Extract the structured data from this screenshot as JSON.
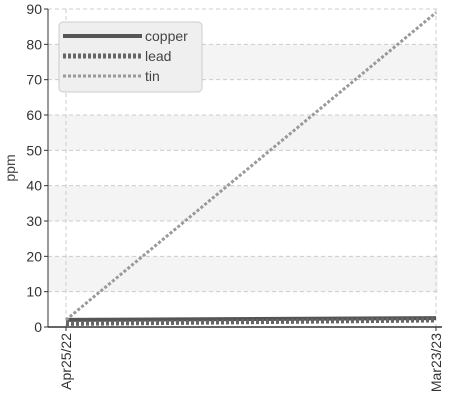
{
  "chart_data": {
    "type": "line",
    "title": "",
    "xlabel": "",
    "ylabel": "ppm",
    "x": [
      "Apr25/22",
      "Mar23/23"
    ],
    "ylim": [
      0,
      90
    ],
    "yticks": [
      0,
      10,
      20,
      30,
      40,
      50,
      60,
      70,
      80,
      90
    ],
    "grid": true,
    "legend": "top-left",
    "series": [
      {
        "name": "copper",
        "values": [
          2,
          2.5
        ],
        "color": "#555555",
        "style": "solid"
      },
      {
        "name": "lead",
        "values": [
          1,
          2
        ],
        "color": "#666666",
        "style": "dotted"
      },
      {
        "name": "tin",
        "values": [
          2,
          89
        ],
        "color": "#999999",
        "style": "dashed"
      }
    ]
  }
}
